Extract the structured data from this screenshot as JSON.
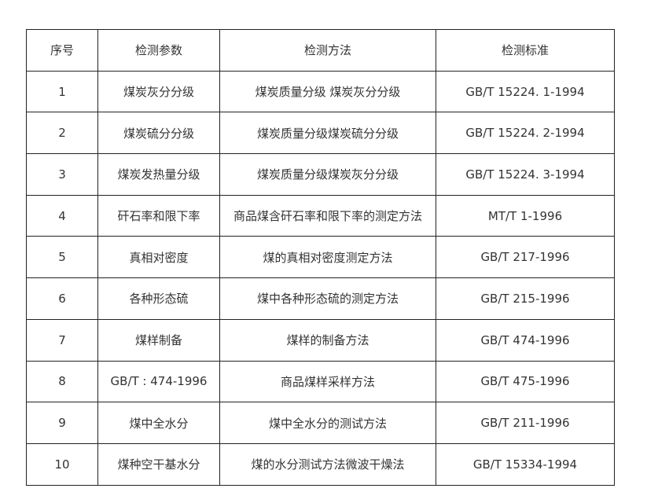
{
  "table": {
    "headers": [
      "序号",
      "检测参数",
      "检测方法",
      "检测标准"
    ],
    "rows": [
      [
        "1",
        "煤炭灰分分级",
        "煤炭质量分级  煤炭灰分分级",
        "GB/T 15224. 1-1994"
      ],
      [
        "2",
        "煤炭硫分分级",
        "煤炭质量分级煤炭硫分分级",
        "GB/T 15224. 2-1994"
      ],
      [
        "3",
        "煤炭发热量分级",
        "煤炭质量分级煤炭灰分分级",
        "GB/T 15224. 3-1994"
      ],
      [
        "4",
        "矸石率和限下率",
        "商品煤含矸石率和限下率的测定方法",
        "MT/T 1-1996"
      ],
      [
        "5",
        "真相对密度",
        "煤的真相对密度测定方法",
        "GB/T 217-1996"
      ],
      [
        "6",
        "各种形态硫",
        "煤中各种形态硫的测定方法",
        "GB/T 215-1996"
      ],
      [
        "7",
        "煤样制备",
        "煤样的制备方法",
        "GB/T 474-1996"
      ],
      [
        "8",
        "GB/T : 474-1996",
        "商品煤样采样方法",
        "GB/T 475-1996"
      ],
      [
        "9",
        "煤中全水分",
        "煤中全水分的测试方法",
        "GB/T 211-1996"
      ],
      [
        "10",
        "煤种空干基水分",
        "煤的水分测试方法微波干燥法",
        "GB/T 15334-1994"
      ]
    ]
  }
}
